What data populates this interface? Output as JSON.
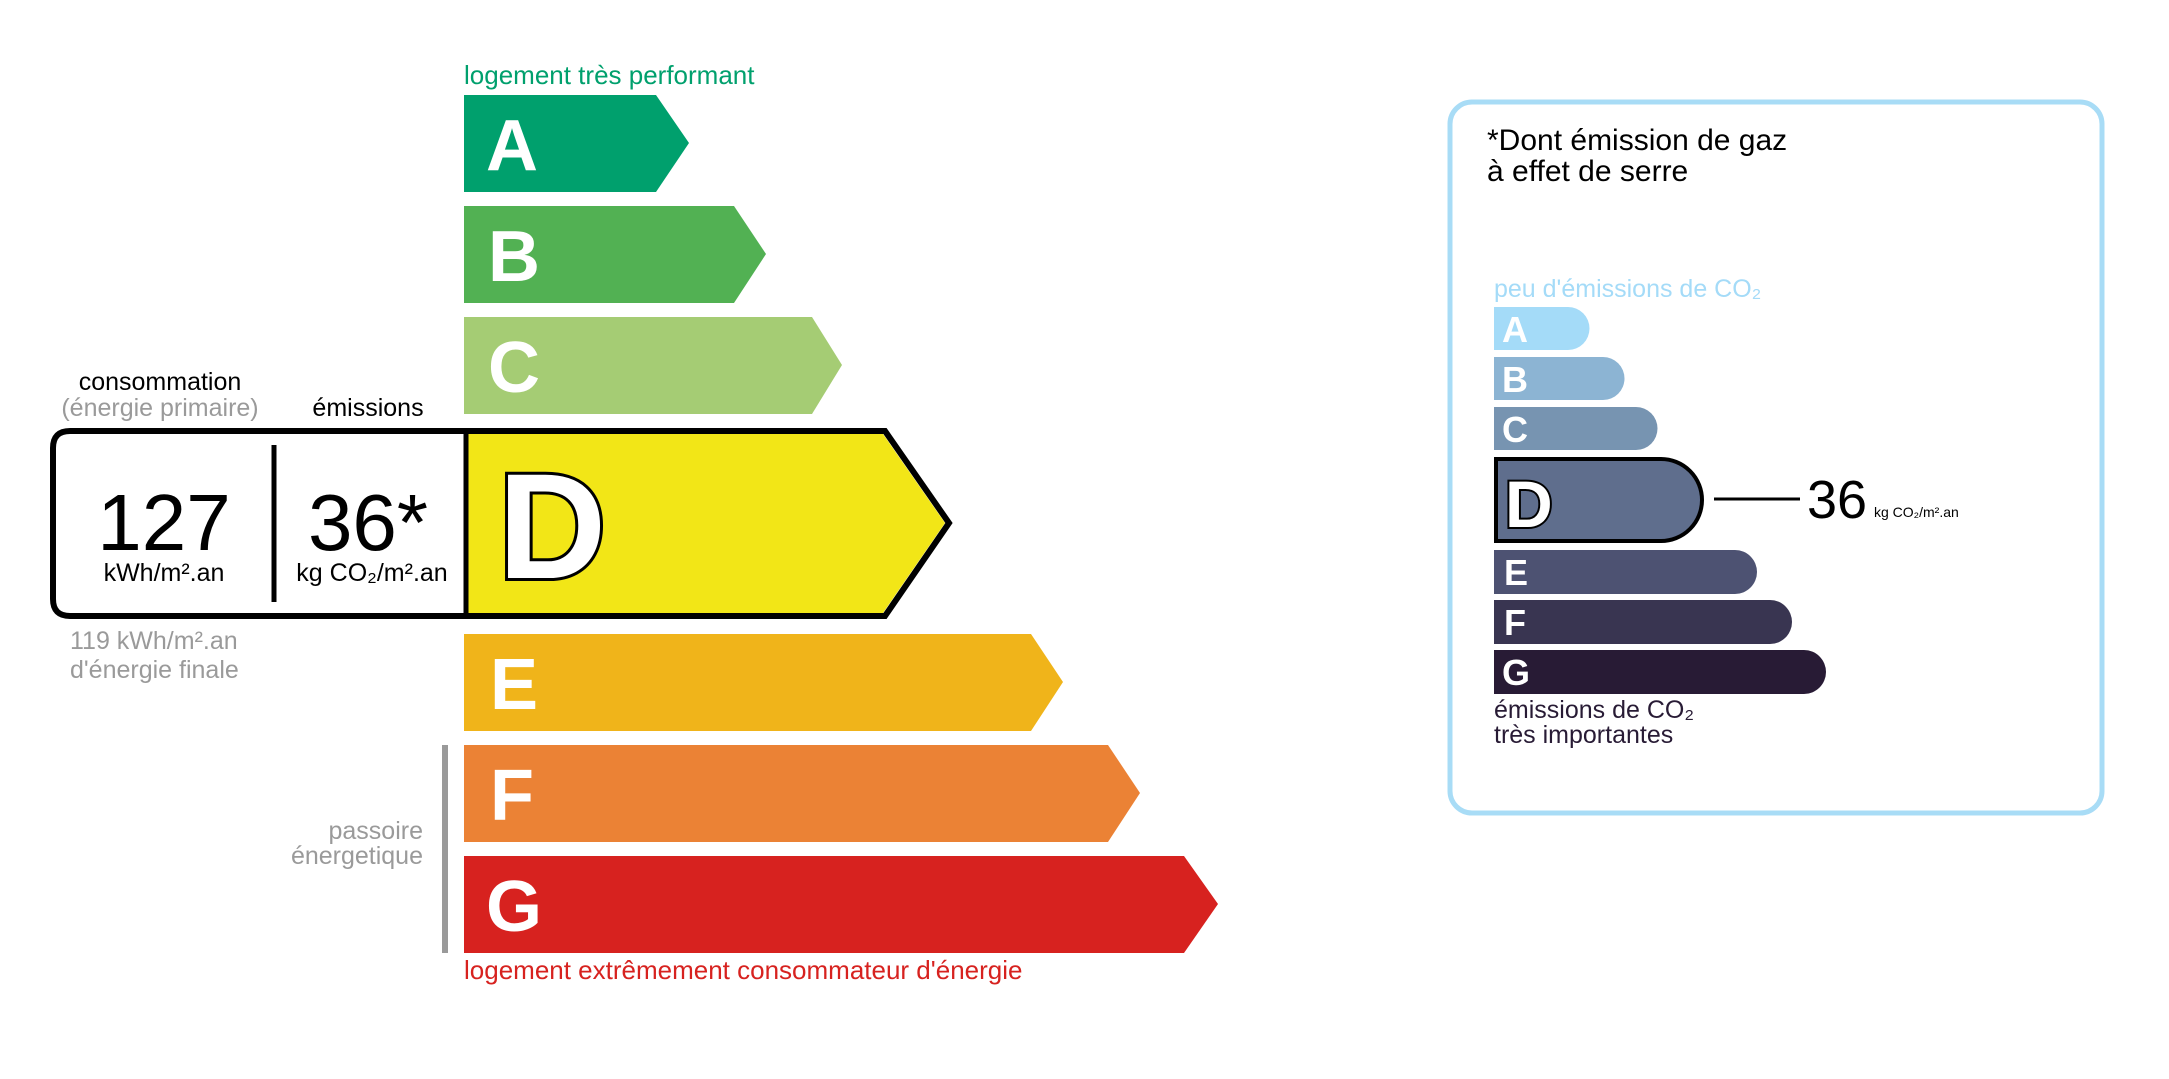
{
  "energy": {
    "top_label": "logement très performant",
    "bottom_label": "logement extrêmement consommateur d'énergie",
    "passoire_line1": "passoire",
    "passoire_line2": "énergetique",
    "classes": [
      {
        "letter": "A",
        "color": "#00a06d"
      },
      {
        "letter": "B",
        "color": "#52b153"
      },
      {
        "letter": "C",
        "color": "#a5cc74"
      },
      {
        "letter": "D",
        "color": "#f2e617"
      },
      {
        "letter": "E",
        "color": "#f0b41a"
      },
      {
        "letter": "F",
        "color": "#eb8235"
      },
      {
        "letter": "G",
        "color": "#d7221f"
      }
    ],
    "current_class": "D",
    "consumption_label": "consommation",
    "consumption_sub": "(énergie primaire)",
    "emissions_label": "émissions",
    "consumption_value": "127",
    "consumption_unit": "kWh/m².an",
    "emissions_value": "36*",
    "emissions_unit": "kg CO₂/m².an",
    "final_energy_value": "119 kWh/m².an",
    "final_energy_label": "d'énergie finale"
  },
  "ghg": {
    "title_line1": "*Dont émission de gaz",
    "title_line2": "à effet de serre",
    "top_label": "peu d'émissions de CO₂",
    "bottom_line1": "émissions de CO₂",
    "bottom_line2": "très importantes",
    "classes": [
      {
        "letter": "A",
        "color": "#a4dbf8"
      },
      {
        "letter": "B",
        "color": "#8cb4d3"
      },
      {
        "letter": "C",
        "color": "#7794b1"
      },
      {
        "letter": "D",
        "color": "#5f6e8d"
      },
      {
        "letter": "E",
        "color": "#4d5272"
      },
      {
        "letter": "F",
        "color": "#393551"
      },
      {
        "letter": "G",
        "color": "#281b35"
      }
    ],
    "current_class": "D",
    "value": "36",
    "unit": "kg CO₂/m².an",
    "border_color": "#a8dcf6"
  }
}
